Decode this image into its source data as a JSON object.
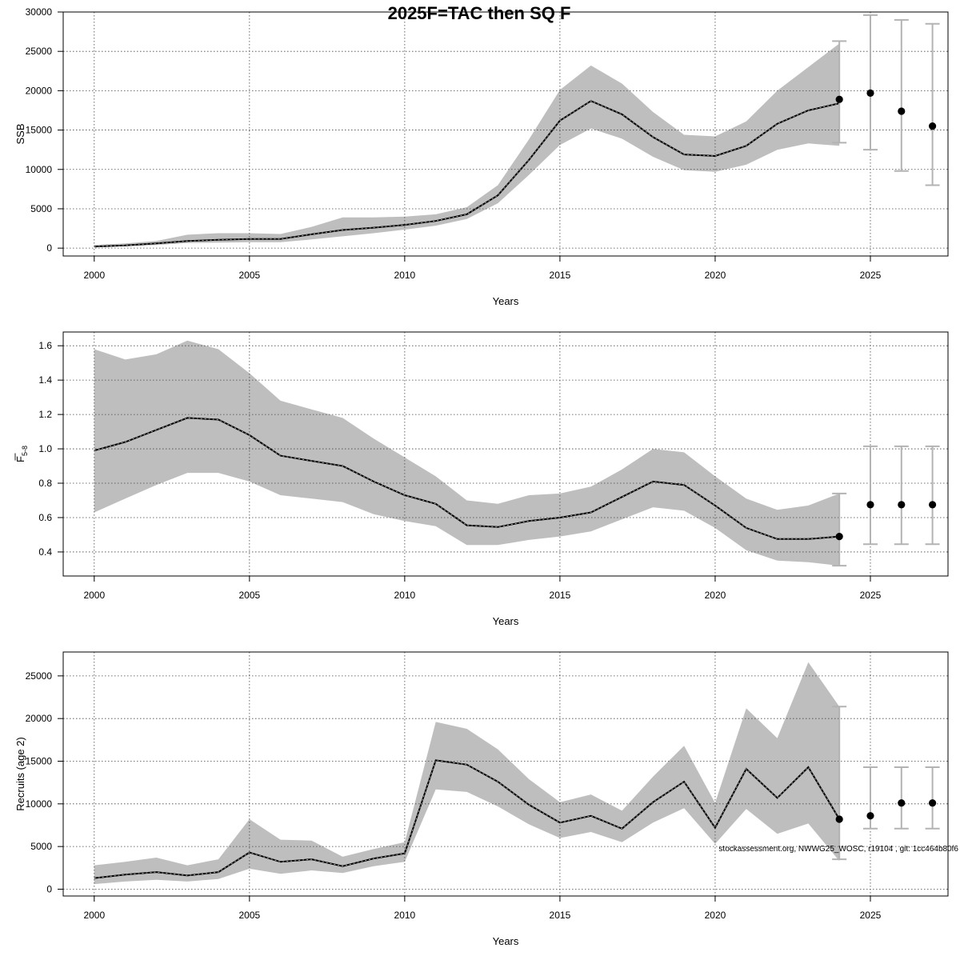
{
  "title": "2025F=TAC then SQ F",
  "footnote": "stockassessment.org, NWWG25_WOSC, r19104 , git: 1cc464b80f6",
  "colors": {
    "band": "#bebebe",
    "line": "#000000",
    "grid": "#444444",
    "errorbar": "#b3b3b3",
    "point": "#000000"
  },
  "chart_data": [
    {
      "type": "line",
      "xlabel": "Years",
      "ylabel": "SSB",
      "xlim": [
        1999,
        2027.5
      ],
      "ylim": [
        -1000,
        30000
      ],
      "xticks": [
        2000,
        2005,
        2010,
        2015,
        2020,
        2025
      ],
      "yticks": [
        0,
        5000,
        10000,
        15000,
        20000,
        25000,
        30000
      ],
      "grid": true,
      "x": [
        2000,
        2001,
        2002,
        2003,
        2004,
        2005,
        2006,
        2007,
        2008,
        2009,
        2010,
        2011,
        2012,
        2013,
        2014,
        2015,
        2016,
        2017,
        2018,
        2019,
        2020,
        2021,
        2022,
        2023,
        2024
      ],
      "estimate": [
        200,
        350,
        600,
        900,
        1050,
        1150,
        1150,
        1750,
        2300,
        2600,
        2950,
        3450,
        4300,
        6700,
        11200,
        16200,
        18700,
        17000,
        14100,
        11900,
        11700,
        13000,
        15800,
        17500,
        18400
      ],
      "lower": [
        100,
        250,
        400,
        650,
        700,
        750,
        750,
        1100,
        1500,
        1900,
        2350,
        2850,
        3700,
        5700,
        9300,
        13100,
        15200,
        13900,
        11600,
        9900,
        9700,
        10600,
        12500,
        13300,
        13000
      ],
      "upper": [
        400,
        600,
        900,
        1700,
        1900,
        1900,
        1800,
        2700,
        3900,
        3900,
        4000,
        4300,
        5200,
        8000,
        13800,
        20100,
        23200,
        20900,
        17300,
        14400,
        14200,
        16100,
        20000,
        23000,
        26000
      ],
      "forecast": {
        "x": [
          2024,
          2025,
          2026,
          2027
        ],
        "median": [
          18900,
          19700,
          17400,
          15500
        ],
        "low": [
          13400,
          12500,
          9800,
          8000
        ],
        "high": [
          26300,
          29600,
          29000,
          28500
        ]
      }
    },
    {
      "type": "line",
      "xlabel": "Years",
      "ylabel": "F",
      "ylabel_sub": "5-8",
      "xlim": [
        1999,
        2027.5
      ],
      "ylim": [
        0.26,
        1.68
      ],
      "xticks": [
        2000,
        2005,
        2010,
        2015,
        2020,
        2025
      ],
      "yticks": [
        0.4,
        0.6,
        0.8,
        1.0,
        1.2,
        1.4,
        1.6
      ],
      "ytick_labels": [
        "0.4",
        "0.6",
        "0.8",
        "1.0",
        "1.2",
        "1.4",
        "1.6"
      ],
      "grid": true,
      "x": [
        2000,
        2001,
        2002,
        2003,
        2004,
        2005,
        2006,
        2007,
        2008,
        2009,
        2010,
        2011,
        2012,
        2013,
        2014,
        2015,
        2016,
        2017,
        2018,
        2019,
        2020,
        2021,
        2022,
        2023,
        2024
      ],
      "estimate": [
        0.99,
        1.04,
        1.11,
        1.18,
        1.17,
        1.08,
        0.96,
        0.93,
        0.9,
        0.81,
        0.73,
        0.68,
        0.555,
        0.545,
        0.58,
        0.6,
        0.63,
        0.72,
        0.81,
        0.79,
        0.67,
        0.54,
        0.475,
        0.475,
        0.49
      ],
      "lower": [
        0.63,
        0.71,
        0.79,
        0.86,
        0.86,
        0.81,
        0.73,
        0.71,
        0.69,
        0.62,
        0.58,
        0.55,
        0.44,
        0.44,
        0.47,
        0.49,
        0.52,
        0.59,
        0.66,
        0.64,
        0.54,
        0.41,
        0.35,
        0.34,
        0.32
      ],
      "upper": [
        1.58,
        1.52,
        1.55,
        1.63,
        1.58,
        1.44,
        1.28,
        1.23,
        1.18,
        1.06,
        0.95,
        0.84,
        0.7,
        0.68,
        0.73,
        0.74,
        0.78,
        0.88,
        1.0,
        0.98,
        0.84,
        0.71,
        0.645,
        0.67,
        0.74
      ],
      "forecast": {
        "x": [
          2024,
          2025,
          2026,
          2027
        ],
        "median": [
          0.49,
          0.675,
          0.675,
          0.675
        ],
        "low": [
          0.32,
          0.445,
          0.445,
          0.445
        ],
        "high": [
          0.74,
          1.015,
          1.015,
          1.015
        ]
      }
    },
    {
      "type": "line",
      "xlabel": "Years",
      "ylabel": "Recruits (age 2)",
      "xlim": [
        1999,
        2027.5
      ],
      "ylim": [
        -800,
        27800
      ],
      "xticks": [
        2000,
        2005,
        2010,
        2015,
        2020,
        2025
      ],
      "yticks": [
        0,
        5000,
        10000,
        15000,
        20000,
        25000
      ],
      "grid": true,
      "x": [
        2000,
        2001,
        2002,
        2003,
        2004,
        2005,
        2006,
        2007,
        2008,
        2009,
        2010,
        2011,
        2012,
        2013,
        2014,
        2015,
        2016,
        2017,
        2018,
        2019,
        2020,
        2021,
        2022,
        2023,
        2024
      ],
      "estimate": [
        1300,
        1700,
        2000,
        1600,
        2000,
        4300,
        3200,
        3500,
        2700,
        3600,
        4200,
        15100,
        14600,
        12600,
        9900,
        7800,
        8600,
        7100,
        10200,
        12600,
        7200,
        14100,
        10700,
        14300,
        8200
      ],
      "lower": [
        600,
        900,
        1100,
        900,
        1200,
        2400,
        1800,
        2200,
        1900,
        2700,
        3200,
        11700,
        11400,
        9700,
        7600,
        6000,
        6700,
        5500,
        7800,
        9500,
        5300,
        9400,
        6500,
        7700,
        3300
      ],
      "upper": [
        2800,
        3200,
        3700,
        2800,
        3500,
        8200,
        5800,
        5700,
        3800,
        4700,
        5500,
        19600,
        18800,
        16400,
        12900,
        10200,
        11100,
        9200,
        13200,
        16800,
        10100,
        21200,
        17700,
        26600,
        21400
      ],
      "forecast": {
        "x": [
          2024,
          2025,
          2026,
          2027
        ],
        "median": [
          8200,
          8600,
          10100,
          10100
        ],
        "low": [
          3500,
          7100,
          7100,
          7100
        ],
        "high": [
          21400,
          14300,
          14300,
          14300
        ]
      }
    }
  ]
}
